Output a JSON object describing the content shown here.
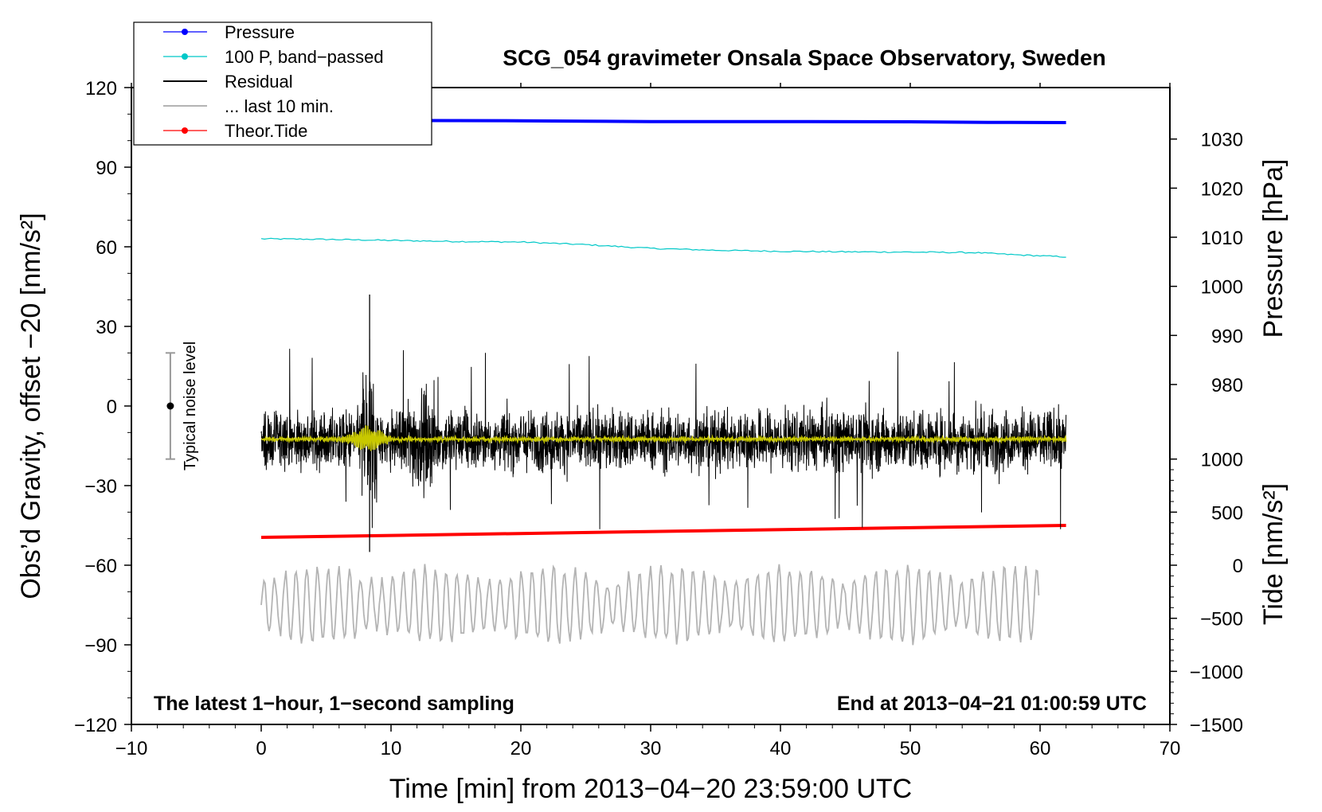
{
  "chart_data": {
    "type": "line",
    "title": "SCG_054 gravimeter Onsala Space Observatory, Sweden",
    "xlabel": "Time [min] from 2013−04−20 23:59:00 UTC",
    "ylabel_left": "Obs’d Gravity, offset −20 [nm/s²]",
    "ylabel_right_top": "Pressure [hPa]",
    "ylabel_right_bottom": "Tide [nm/s²]",
    "xlim": [
      -10,
      70
    ],
    "ylim_left": [
      -120,
      120
    ],
    "x_ticks": [
      "−10",
      "0",
      "10",
      "20",
      "30",
      "40",
      "50",
      "60",
      "70"
    ],
    "y_left_ticks": [
      "120",
      "90",
      "60",
      "30",
      "0",
      "−30",
      "−60",
      "−90",
      "−120"
    ],
    "pressure_ticks": [
      "1030",
      "1020",
      "1010",
      "1000",
      "990",
      "980"
    ],
    "tide_ticks": [
      "1000",
      "500",
      "0",
      "−500",
      "−1000",
      "−1500"
    ],
    "note_left": "The latest 1−hour, 1−second sampling",
    "note_right": "End at 2013−04−21 01:00:59 UTC",
    "noise_label": "Typical noise level",
    "noise_bar": {
      "x": -7,
      "center": 0,
      "half_range": 20
    },
    "legend": [
      {
        "label": "Pressure",
        "color": "#0000ff",
        "marker": true
      },
      {
        "label": "100 P, band−passed",
        "color": "#00c8c8",
        "marker": true
      },
      {
        "label": "Residual",
        "color": "#000000",
        "marker": false
      },
      {
        "label": "... last 10 min.",
        "color": "#b4b4b4",
        "marker": false
      },
      {
        "label": "Theor.Tide",
        "color": "#ff0000",
        "marker": true
      }
    ],
    "series": [
      {
        "name": "Pressure",
        "color": "#0000ff",
        "x": [
          0,
          10,
          20,
          25,
          30,
          40,
          50,
          56,
          62
        ],
        "y": [
          107.6,
          107.6,
          107.5,
          107.3,
          107.2,
          107.2,
          107.1,
          106.9,
          106.8
        ]
      },
      {
        "name": "100 P, band−passed",
        "color": "#00c8c8",
        "x": [
          0,
          5,
          10,
          15,
          20,
          25,
          30,
          35,
          40,
          45,
          50,
          55,
          58,
          62
        ],
        "y": [
          63.0,
          62.8,
          62.4,
          62.0,
          61.8,
          60.8,
          59.4,
          58.7,
          58.3,
          58.1,
          58.0,
          57.8,
          57.0,
          56.2
        ]
      },
      {
        "name": "Residual",
        "color": "#000000",
        "x_range": [
          0,
          62
        ],
        "baseline": -13,
        "typical_amplitude": 10,
        "min": -55,
        "max": 42
      },
      {
        "name": "Residual smoothed",
        "color": "#c8c800",
        "x_range": [
          0,
          62
        ],
        "baseline": -12.5
      },
      {
        "name": "Theor.Tide",
        "color": "#ff0000",
        "x": [
          0,
          62
        ],
        "y": [
          -49.5,
          -45.0
        ]
      },
      {
        "name": "... last 10 min.",
        "color": "#b4b4b4",
        "x_range": [
          0,
          60
        ],
        "baseline": -75,
        "typical_amplitude": 12
      }
    ]
  }
}
